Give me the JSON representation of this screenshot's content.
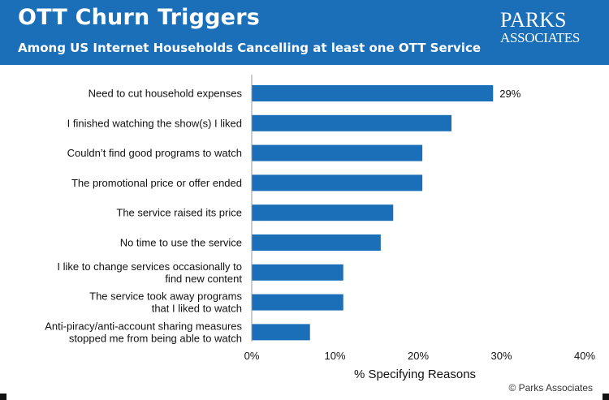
{
  "header": {
    "title": "OTT Churn Triggers",
    "subtitle": "Among US Internet Households Cancelling at least one OTT Service",
    "logo_top": "PARKS",
    "logo_bottom": "ASSOCIATES"
  },
  "footer": {
    "credit": "© Parks Associates"
  },
  "colors": {
    "header_bg": "#1a6fb8",
    "bar": "#1a6fb8",
    "text": "#111111"
  },
  "chart_data": {
    "type": "bar",
    "orientation": "horizontal",
    "categories": [
      [
        "Need to cut household expenses"
      ],
      [
        "I finished watching the show(s) I liked"
      ],
      [
        "Couldn’t find good programs to watch"
      ],
      [
        "The promotional price or offer ended"
      ],
      [
        "The service raised its price"
      ],
      [
        "No time to use the service"
      ],
      [
        "I like to change services occasionally to",
        "find new content"
      ],
      [
        "The service took away programs",
        "that I liked to watch"
      ],
      [
        "Anti-piracy/anti-account sharing measures",
        "stopped me from being able to watch"
      ]
    ],
    "values": [
      29,
      24,
      20.5,
      20.5,
      17,
      15.5,
      11,
      11,
      7
    ],
    "data_labels": [
      "29%",
      "",
      "",
      "",
      "",
      "",
      "",
      "",
      ""
    ],
    "xlabel": "% Specifying Reasons",
    "ylabel": "",
    "xlim": [
      0,
      40
    ],
    "xticks": [
      0,
      10,
      20,
      30,
      40
    ],
    "xtick_labels": [
      "0%",
      "10%",
      "20%",
      "30%",
      "40%"
    ],
    "grid": false,
    "legend": "none"
  }
}
